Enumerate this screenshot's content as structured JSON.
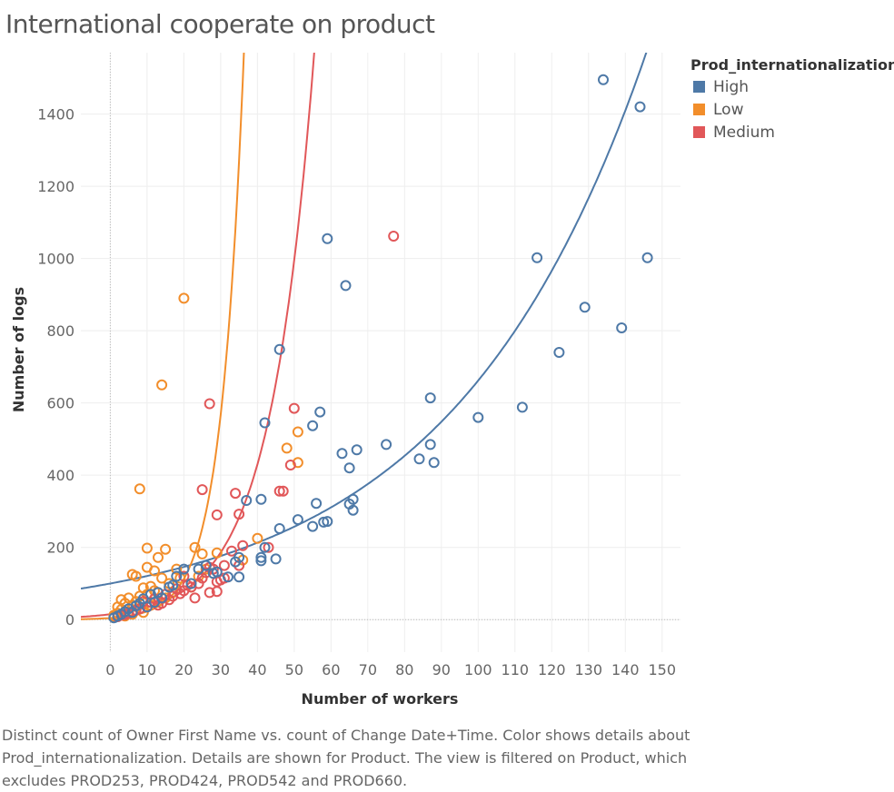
{
  "title": "International cooperate on product",
  "caption": "Distinct count of Owner First Name vs. count of Change Date+Time.  Color shows details about Prod_internationalization.  Details are shown for Product. The view is filtered on Product, which excludes PROD253, PROD424, PROD542 and PROD660.",
  "legend": {
    "title": "Prod_internationalization",
    "items": [
      {
        "label": "High",
        "color": "#4e79a7"
      },
      {
        "label": "Low",
        "color": "#f28e2b"
      },
      {
        "label": "Medium",
        "color": "#e15759"
      }
    ]
  },
  "chart_data": {
    "type": "scatter",
    "xlabel": "Number of workers",
    "ylabel": "Number of logs",
    "xlim": [
      -8,
      155
    ],
    "ylim": [
      -90,
      1570
    ],
    "xticks": [
      0,
      10,
      20,
      30,
      40,
      50,
      60,
      70,
      80,
      90,
      100,
      110,
      120,
      130,
      140,
      150
    ],
    "yticks": [
      0,
      200,
      400,
      600,
      800,
      1000,
      1200,
      1400
    ],
    "grid": true,
    "legend_position": "top-right",
    "trend": "exponential",
    "series": [
      {
        "name": "High",
        "color": "#4e79a7",
        "trend_coeffs": {
          "a": 100,
          "b": 0.0189
        },
        "points": [
          [
            134,
            1495
          ],
          [
            144,
            1420
          ],
          [
            116,
            1002
          ],
          [
            146,
            1002
          ],
          [
            129,
            865
          ],
          [
            139,
            808
          ],
          [
            122,
            740
          ],
          [
            59,
            1055
          ],
          [
            64,
            925
          ],
          [
            46,
            748
          ],
          [
            87,
            614
          ],
          [
            112,
            588
          ],
          [
            100,
            560
          ],
          [
            57,
            575
          ],
          [
            42,
            545
          ],
          [
            55,
            537
          ],
          [
            75,
            485
          ],
          [
            87,
            485
          ],
          [
            63,
            460
          ],
          [
            67,
            470
          ],
          [
            84,
            445
          ],
          [
            88,
            435
          ],
          [
            65,
            420
          ],
          [
            56,
            322
          ],
          [
            65,
            320
          ],
          [
            66,
            333
          ],
          [
            66,
            303
          ],
          [
            41,
            333
          ],
          [
            37,
            330
          ],
          [
            51,
            277
          ],
          [
            58,
            270
          ],
          [
            59,
            272
          ],
          [
            55,
            258
          ],
          [
            46,
            252
          ],
          [
            42,
            200
          ],
          [
            41,
            172
          ],
          [
            41,
            163
          ],
          [
            45,
            168
          ],
          [
            35,
            172
          ],
          [
            34,
            160
          ],
          [
            35,
            118
          ],
          [
            32,
            118
          ],
          [
            29,
            132
          ],
          [
            26,
            150
          ],
          [
            24,
            140
          ],
          [
            20,
            140
          ],
          [
            18,
            120
          ],
          [
            17,
            95
          ],
          [
            16,
            90
          ],
          [
            13,
            75
          ],
          [
            11,
            70
          ],
          [
            9,
            58
          ],
          [
            8,
            45
          ],
          [
            7,
            38
          ],
          [
            5,
            30
          ],
          [
            4,
            22
          ],
          [
            3,
            15
          ],
          [
            2,
            10
          ],
          [
            1,
            5
          ],
          [
            6,
            20
          ],
          [
            10,
            35
          ],
          [
            12,
            48
          ],
          [
            14,
            60
          ],
          [
            22,
            100
          ],
          [
            28,
            128
          ]
        ]
      },
      {
        "name": "Low",
        "color": "#f28e2b",
        "trend_coeffs": {
          "a": 4.5,
          "b": 0.1612
        },
        "points": [
          [
            20,
            890
          ],
          [
            14,
            650
          ],
          [
            8,
            362
          ],
          [
            51,
            520
          ],
          [
            48,
            475
          ],
          [
            51,
            435
          ],
          [
            40,
            225
          ],
          [
            23,
            200
          ],
          [
            10,
            198
          ],
          [
            15,
            195
          ],
          [
            29,
            185
          ],
          [
            25,
            182
          ],
          [
            13,
            172
          ],
          [
            36,
            165
          ],
          [
            10,
            145
          ],
          [
            12,
            135
          ],
          [
            6,
            125
          ],
          [
            7,
            120
          ],
          [
            14,
            115
          ],
          [
            18,
            140
          ],
          [
            19,
            115
          ],
          [
            16,
            100
          ],
          [
            11,
            92
          ],
          [
            9,
            88
          ],
          [
            12,
            80
          ],
          [
            10,
            70
          ],
          [
            8,
            65
          ],
          [
            5,
            60
          ],
          [
            3,
            55
          ],
          [
            7,
            50
          ],
          [
            4,
            45
          ],
          [
            6,
            40
          ],
          [
            2,
            35
          ],
          [
            3,
            28
          ],
          [
            5,
            22
          ],
          [
            2,
            18
          ],
          [
            1,
            12
          ],
          [
            1,
            8
          ],
          [
            4,
            10
          ],
          [
            6,
            15
          ],
          [
            8,
            30
          ],
          [
            9,
            20
          ],
          [
            11,
            40
          ],
          [
            13,
            50
          ],
          [
            15,
            60
          ],
          [
            17,
            75
          ],
          [
            22,
            90
          ],
          [
            24,
            120
          ],
          [
            26,
            140
          ]
        ]
      },
      {
        "name": "Medium",
        "color": "#e15759",
        "trend_coeffs": {
          "a": 15,
          "b": 0.0839
        },
        "points": [
          [
            77,
            1062
          ],
          [
            50,
            585
          ],
          [
            27,
            598
          ],
          [
            49,
            428
          ],
          [
            46,
            356
          ],
          [
            47,
            356
          ],
          [
            25,
            360
          ],
          [
            34,
            350
          ],
          [
            29,
            290
          ],
          [
            35,
            292
          ],
          [
            36,
            205
          ],
          [
            43,
            200
          ],
          [
            33,
            190
          ],
          [
            31,
            150
          ],
          [
            35,
            150
          ],
          [
            28,
            140
          ],
          [
            27,
            145
          ],
          [
            26,
            130
          ],
          [
            29,
            105
          ],
          [
            24,
            100
          ],
          [
            22,
            90
          ],
          [
            21,
            95
          ],
          [
            20,
            80
          ],
          [
            19,
            72
          ],
          [
            23,
            60
          ],
          [
            27,
            75
          ],
          [
            29,
            78
          ],
          [
            30,
            110
          ],
          [
            31,
            115
          ],
          [
            25,
            115
          ],
          [
            17,
            65
          ],
          [
            16,
            55
          ],
          [
            14,
            45
          ],
          [
            13,
            40
          ],
          [
            11,
            48
          ],
          [
            10,
            35
          ],
          [
            9,
            50
          ],
          [
            8,
            30
          ],
          [
            7,
            26
          ],
          [
            6,
            22
          ],
          [
            5,
            18
          ],
          [
            3,
            12
          ],
          [
            2,
            8
          ],
          [
            4,
            14
          ],
          [
            12,
            58
          ],
          [
            15,
            70
          ],
          [
            18,
            85
          ],
          [
            20,
            120
          ]
        ]
      }
    ]
  }
}
